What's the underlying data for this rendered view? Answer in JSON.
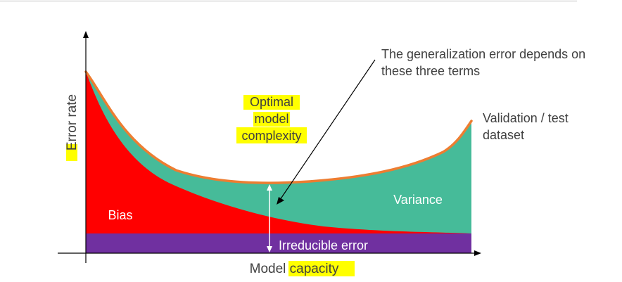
{
  "labels": {
    "y_axis": "Error rate",
    "x_axis_part1": "Model",
    "x_axis_part2": "capacity",
    "optimal_line1": "Optimal",
    "optimal_line2": "model",
    "optimal_line3": "complexity",
    "annotation_line1": "The generalization error depends on",
    "annotation_line2": "these three terms",
    "validation_line1": "Validation / test",
    "validation_line2": "dataset",
    "variance": "Variance",
    "bias": "Bias",
    "irreducible": "Irreducible error"
  },
  "colors": {
    "bias": "#ff0000",
    "variance": "#46bb99",
    "irreducible": "#7030a0",
    "total_error_curve": "#ed7d31",
    "highlight": "#ffff00",
    "axis": "#000000",
    "text": "#404040",
    "top_rule": "#d9d9d9"
  }
}
